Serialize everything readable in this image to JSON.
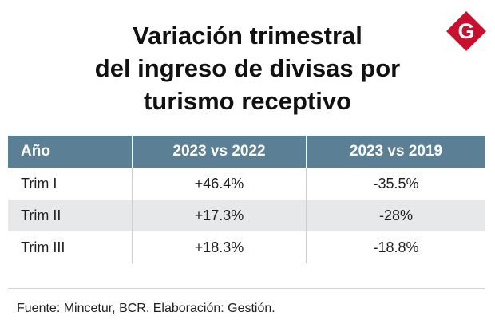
{
  "title_lines": [
    "Variación trimestral",
    "del ingreso de divisas por",
    "turismo receptivo"
  ],
  "logo_letter": "G",
  "colors": {
    "header_bg": "#5b7f95",
    "stripe": "#e6e8ea",
    "logo_red": "#c8102e"
  },
  "chart_data": {
    "type": "table",
    "title": "Variación trimestral del ingreso de divisas por turismo receptivo",
    "columns": [
      "Año",
      "2023 vs 2022",
      "2023 vs 2019"
    ],
    "rows": [
      [
        "Trim I",
        "+46.4%",
        "-35.5%"
      ],
      [
        "Trim II",
        "+17.3%",
        "-28%"
      ],
      [
        "Trim III",
        "+18.3%",
        "-18.8%"
      ]
    ]
  },
  "source": "Fuente: Mincetur, BCR. Elaboración: Gestión."
}
